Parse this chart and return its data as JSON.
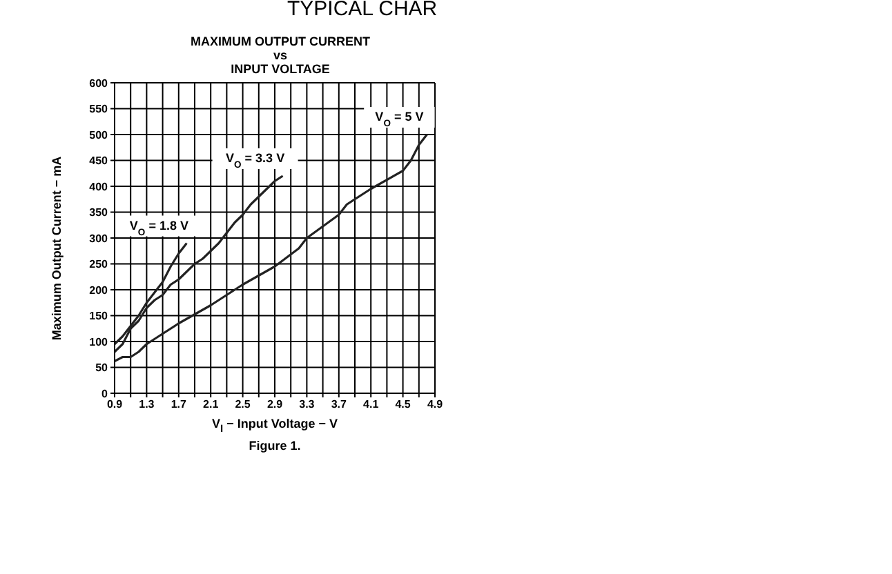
{
  "chart_data": {
    "type": "line",
    "title": "MAXIMUM OUTPUT CURRENT\nvs\nINPUT VOLTAGE",
    "xlabel": "V$_{I}$ − Input Voltage − V",
    "ylabel": "Maximum Output Current − mA",
    "annotations": [
      "TYPICAL CHAR",
      "Figure 1."
    ],
    "series": [
      {
        "name": "V$_{O}$ = 1.8 V",
        "color": "#222222",
        "x": [
          0.9,
          1.0,
          1.1,
          1.2,
          1.3,
          1.4,
          1.5,
          1.6,
          1.7,
          1.8
        ],
        "values": [
          95,
          110,
          130,
          150,
          175,
          195,
          215,
          245,
          270,
          290
        ]
      },
      {
        "name": "V$_{O}$ = 3.3 V",
        "color": "#222222",
        "x": [
          0.9,
          1.0,
          1.1,
          1.2,
          1.3,
          1.4,
          1.5,
          1.6,
          1.7,
          1.8,
          1.9,
          2.0,
          2.1,
          2.2,
          2.3,
          2.4,
          2.5,
          2.6,
          2.7,
          2.8,
          2.9,
          3.0
        ],
        "values": [
          80,
          95,
          125,
          140,
          165,
          180,
          190,
          210,
          220,
          235,
          250,
          260,
          275,
          290,
          310,
          330,
          345,
          365,
          380,
          395,
          410,
          420
        ]
      },
      {
        "name": "V$_{O}$ = 5 V",
        "color": "#222222",
        "x": [
          0.9,
          1.0,
          1.1,
          1.2,
          1.3,
          1.5,
          1.7,
          2.1,
          2.5,
          2.9,
          3.2,
          3.3,
          3.7,
          3.8,
          4.1,
          4.5,
          4.6,
          4.7,
          4.8
        ],
        "values": [
          62,
          70,
          70,
          80,
          95,
          115,
          135,
          170,
          210,
          245,
          280,
          300,
          345,
          365,
          395,
          430,
          450,
          480,
          500
        ]
      }
    ],
    "xlim": [
      0.9,
      4.9
    ],
    "xticks": [
      0.9,
      {
        "value": 1.1,
        "label": null
      },
      1.3,
      {
        "value": 1.5,
        "label": null
      },
      1.7,
      {
        "value": 1.9,
        "label": null
      },
      2.1,
      {
        "value": 2.3,
        "label": null
      },
      2.5,
      {
        "value": 2.7,
        "label": null
      },
      2.9,
      {
        "value": 3.1,
        "label": null
      },
      3.3,
      {
        "value": 3.5,
        "label": null
      },
      3.7,
      {
        "value": 3.9,
        "label": null
      },
      4.1,
      {
        "value": 4.3,
        "label": null
      },
      4.5,
      {
        "value": 4.7,
        "label": null
      },
      4.9
    ],
    "ylim": [
      0,
      600
    ],
    "yticks": [
      0,
      50,
      100,
      150,
      200,
      250,
      300,
      350,
      400,
      450,
      500,
      550,
      600
    ],
    "grid": true,
    "legend": false,
    "marker": "none",
    "line_style": "solid"
  }
}
